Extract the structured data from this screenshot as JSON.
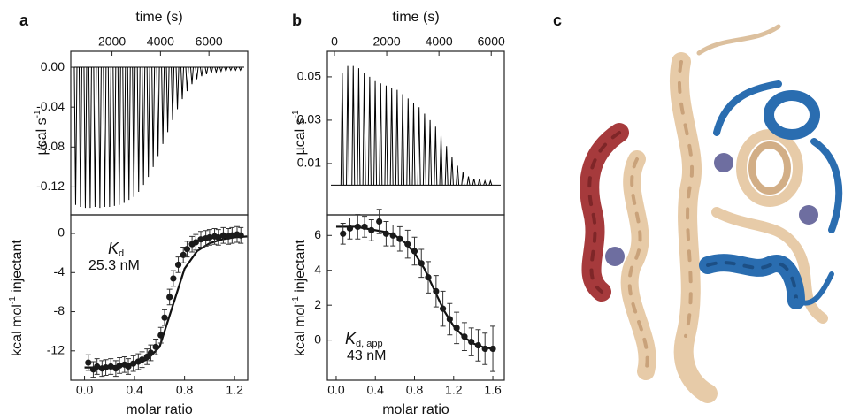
{
  "chart_data": [
    {
      "type": "stem",
      "panel": "a",
      "xlabel": "time (s)",
      "ylabel": {
        "text": "µcal s",
        "sup": "-1"
      },
      "xlim": [
        300,
        7600
      ],
      "xticks": [
        2000,
        4000,
        6000
      ],
      "ylim": [
        -0.148,
        0.016
      ],
      "yticks": [
        {
          "value": 0,
          "label": "0.00"
        },
        -0.04,
        -0.08,
        -0.12
      ],
      "baseline": 0,
      "color": "#000000",
      "x": [
        500,
        700,
        900,
        1100,
        1300,
        1500,
        1700,
        1900,
        2100,
        2300,
        2500,
        2700,
        2900,
        3100,
        3300,
        3500,
        3700,
        3900,
        4100,
        4300,
        4500,
        4700,
        4900,
        5100,
        5300,
        5500,
        5700,
        5900,
        6100,
        6300,
        6500,
        6700,
        6900,
        7100,
        7300
      ],
      "values": [
        -0.138,
        -0.14,
        -0.141,
        -0.141,
        -0.14,
        -0.141,
        -0.14,
        -0.14,
        -0.139,
        -0.138,
        -0.136,
        -0.133,
        -0.13,
        -0.125,
        -0.118,
        -0.11,
        -0.1,
        -0.089,
        -0.077,
        -0.065,
        -0.053,
        -0.042,
        -0.032,
        -0.024,
        -0.017,
        -0.012,
        -0.009,
        -0.007,
        -0.006,
        -0.005,
        -0.004,
        -0.004,
        -0.003,
        -0.003,
        -0.003
      ]
    },
    {
      "type": "scatter",
      "xlabel": "molar ratio",
      "ylabel": {
        "text": "kcal mol",
        "sup": "-1",
        "after": " injectant"
      },
      "xlim": [
        -0.11,
        1.305
      ],
      "xticks": [
        {
          "value": 0,
          "label": "0.0"
        },
        0.4,
        0.8,
        1.2
      ],
      "ylim": [
        -15.0,
        1.9
      ],
      "yticks": [
        0,
        -4,
        -8,
        -12
      ],
      "color": "#1a1a1a",
      "annotation": {
        "symbol": "K",
        "subscript": "d",
        "value": "25.3 nM"
      },
      "x": [
        0.03,
        0.07,
        0.1,
        0.14,
        0.17,
        0.21,
        0.25,
        0.28,
        0.32,
        0.35,
        0.39,
        0.43,
        0.46,
        0.5,
        0.53,
        0.57,
        0.61,
        0.64,
        0.68,
        0.71,
        0.75,
        0.79,
        0.82,
        0.86,
        0.89,
        0.93,
        0.97,
        1.0,
        1.04,
        1.07,
        1.11,
        1.15,
        1.18,
        1.22,
        1.25
      ],
      "values": [
        -13.2,
        -13.9,
        -13.6,
        -13.8,
        -13.7,
        -13.6,
        -13.8,
        -13.5,
        -13.4,
        -13.6,
        -13.3,
        -13.1,
        -12.9,
        -12.6,
        -12.2,
        -11.6,
        -10.4,
        -8.6,
        -6.5,
        -4.6,
        -3.2,
        -2.2,
        -1.6,
        -1.1,
        -0.9,
        -0.6,
        -0.5,
        -0.4,
        -0.3,
        -0.4,
        -0.2,
        -0.3,
        -0.2,
        -0.1,
        -0.2
      ],
      "errors": [
        0.8,
        0.8,
        0.8,
        0.8,
        0.8,
        0.8,
        0.8,
        0.8,
        0.8,
        0.8,
        0.8,
        0.8,
        0.8,
        0.8,
        0.8,
        0.8,
        0.8,
        0.8,
        0.8,
        0.8,
        0.8,
        0.8,
        0.8,
        0.8,
        0.8,
        0.8,
        0.8,
        0.8,
        0.8,
        0.8,
        0.8,
        0.8,
        0.8,
        0.8,
        0.8
      ],
      "fit": {
        "x": [
          0,
          0.1,
          0.2,
          0.3,
          0.4,
          0.5,
          0.6,
          0.7,
          0.8,
          0.9,
          1.0,
          1.1,
          1.2,
          1.3
        ],
        "values": [
          -13.7,
          -13.7,
          -13.6,
          -13.5,
          -13.3,
          -12.9,
          -11.6,
          -7.6,
          -3.6,
          -1.8,
          -1.0,
          -0.6,
          -0.4,
          -0.3
        ]
      }
    },
    {
      "type": "stem",
      "panel": "b",
      "xlabel": "time (s)",
      "ylabel": {
        "text": "µcal s",
        "sup": "-1"
      },
      "xlim": [
        -270,
        6500
      ],
      "xticks": [
        0,
        2000,
        4000,
        6000
      ],
      "ylim": [
        -0.0137,
        0.0618
      ],
      "yticks": [
        0.01,
        0.03,
        0.05
      ],
      "baseline": 0,
      "color": "#000000",
      "x": [
        300,
        510,
        720,
        930,
        1140,
        1350,
        1560,
        1770,
        1980,
        2190,
        2400,
        2610,
        2820,
        3030,
        3240,
        3450,
        3660,
        3870,
        4080,
        4290,
        4500,
        4710,
        4920,
        5130,
        5340,
        5550,
        5760,
        5970
      ],
      "values": [
        0.052,
        0.055,
        0.055,
        0.054,
        0.052,
        0.05,
        0.048,
        0.047,
        0.046,
        0.045,
        0.044,
        0.042,
        0.04,
        0.038,
        0.036,
        0.033,
        0.03,
        0.027,
        0.023,
        0.018,
        0.013,
        0.009,
        0.006,
        0.004,
        0.003,
        0.003,
        0.002,
        0.002
      ]
    },
    {
      "type": "scatter",
      "xlabel": "molar ratio",
      "ylabel": {
        "text": "kcal mol",
        "sup": "-1",
        "after": " injectant"
      },
      "xlim": [
        -0.09,
        1.717
      ],
      "xticks": [
        {
          "value": 0,
          "label": "0.0"
        },
        0.4,
        0.8,
        1.2,
        1.6
      ],
      "ylim": [
        -2.3,
        7.18
      ],
      "yticks": [
        0,
        2,
        4,
        6
      ],
      "color": "#1a1a1a",
      "annotation": {
        "symbol": "K",
        "subscript": "d, app",
        "value": "43 nM"
      },
      "x": [
        0.07,
        0.14,
        0.22,
        0.29,
        0.36,
        0.44,
        0.51,
        0.58,
        0.65,
        0.73,
        0.8,
        0.87,
        0.94,
        1.02,
        1.09,
        1.16,
        1.23,
        1.31,
        1.38,
        1.45,
        1.52,
        1.6
      ],
      "values": [
        6.1,
        6.4,
        6.5,
        6.5,
        6.3,
        6.8,
        6.1,
        6.0,
        5.8,
        5.5,
        5.1,
        4.4,
        3.6,
        2.8,
        1.8,
        1.2,
        0.7,
        0.2,
        -0.1,
        -0.3,
        -0.5,
        -0.5
      ],
      "errors": [
        0.6,
        0.6,
        0.7,
        0.6,
        0.6,
        0.7,
        0.7,
        0.6,
        0.7,
        0.8,
        0.8,
        0.8,
        0.9,
        0.9,
        1.0,
        0.9,
        0.9,
        0.8,
        0.8,
        0.9,
        0.9,
        1.3
      ],
      "fit": {
        "x": [
          0,
          0.1,
          0.2,
          0.3,
          0.4,
          0.5,
          0.6,
          0.7,
          0.8,
          0.9,
          1.0,
          1.1,
          1.2,
          1.3,
          1.4,
          1.5,
          1.6
        ],
        "values": [
          6.5,
          6.5,
          6.5,
          6.4,
          6.3,
          6.2,
          6.0,
          5.6,
          5.0,
          4.1,
          2.9,
          1.7,
          0.8,
          0.2,
          -0.2,
          -0.4,
          -0.5
        ]
      }
    }
  ],
  "structure_panel": {
    "label": "c"
  }
}
